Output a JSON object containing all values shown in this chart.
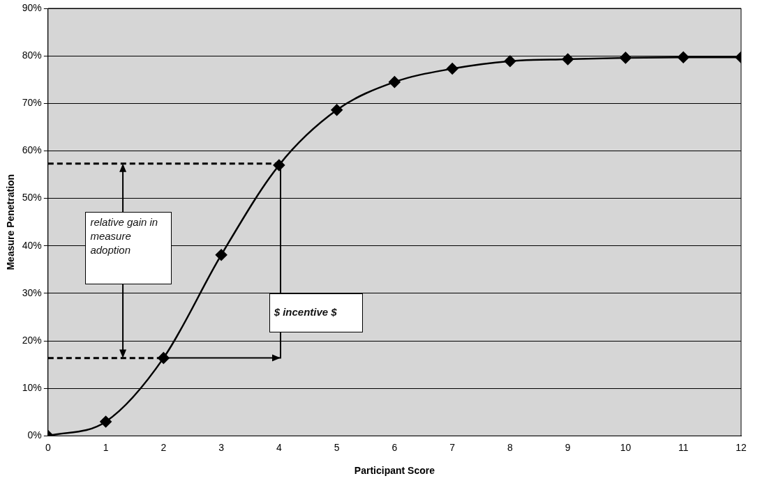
{
  "chart_data": {
    "type": "line",
    "xlabel": "Participant Score",
    "ylabel": "Measure Penetration",
    "x": [
      0,
      1,
      2,
      3,
      4,
      5,
      6,
      7,
      8,
      9,
      10,
      11,
      12
    ],
    "series": [
      {
        "color": "#000000",
        "values": [
          0,
          3,
          16.4,
          38.1,
          57,
          68.6,
          74.5,
          77.3,
          78.9,
          79.3,
          79.6,
          79.7,
          79.7
        ]
      }
    ],
    "xlim": [
      0,
      12
    ],
    "xticks": [
      0,
      1,
      2,
      3,
      4,
      5,
      6,
      7,
      8,
      9,
      10,
      11,
      12
    ],
    "ylim": [
      0,
      90
    ],
    "yticks": [
      {
        "value": 0,
        "label": "0%"
      },
      {
        "value": 10,
        "label": "10%"
      },
      {
        "value": 20,
        "label": "20%"
      },
      {
        "value": 30,
        "label": "30%"
      },
      {
        "value": 40,
        "label": "40%"
      },
      {
        "value": 50,
        "label": "50%"
      },
      {
        "value": 60,
        "label": "60%"
      },
      {
        "value": 70,
        "label": "70%"
      },
      {
        "value": 80,
        "label": "80%"
      },
      {
        "value": 90,
        "label": "90%"
      }
    ],
    "ref_lines": [
      {
        "axis": "y",
        "value": 57.3,
        "line_style": "dashed",
        "color": "#000000"
      },
      {
        "axis": "y",
        "value": 16.4,
        "line_style": "dashed",
        "color": "#000000"
      }
    ],
    "annotations": [
      "relative gain in measure adoption",
      "$ incentive $"
    ],
    "grid": "y",
    "legend": false,
    "marker": "diamond",
    "line_style": "solid"
  }
}
